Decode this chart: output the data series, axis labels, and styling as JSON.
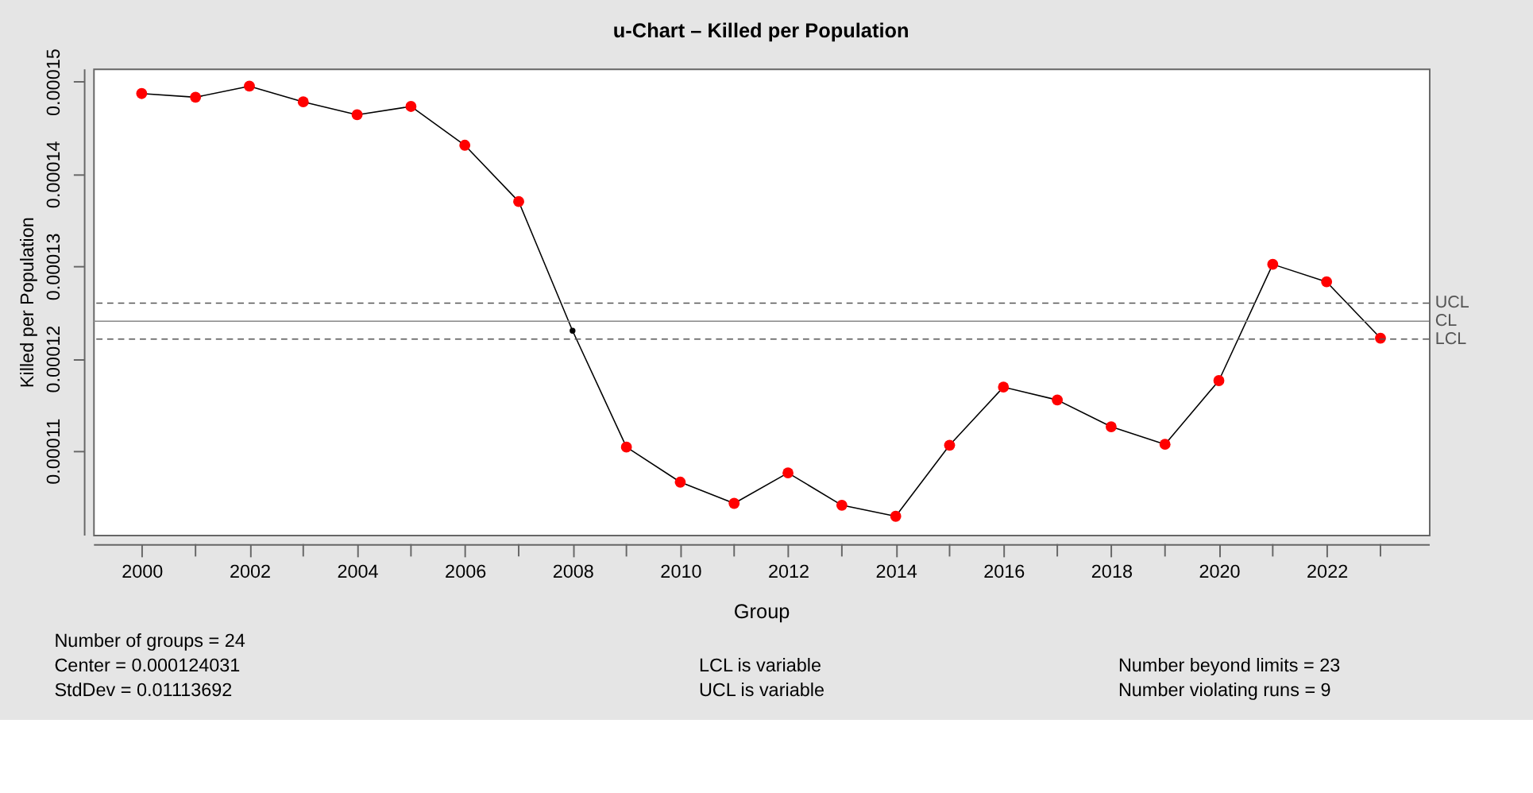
{
  "chart_data": {
    "type": "line",
    "title": "u-Chart – Killed per Population",
    "xlabel": "Group",
    "ylabel": "Killed per Population",
    "x": [
      2000,
      2001,
      2002,
      2003,
      2004,
      2005,
      2006,
      2007,
      2008,
      2009,
      2010,
      2011,
      2012,
      2013,
      2014,
      2015,
      2016,
      2017,
      2018,
      2019,
      2020,
      2021,
      2022,
      2023
    ],
    "series": [
      {
        "color": "#000000",
        "values": [
          0.0001487,
          0.0001483,
          0.0001495,
          0.0001478,
          0.0001464,
          0.0001473,
          0.0001431,
          0.000137,
          0.000123,
          0.0001104,
          0.0001066,
          0.0001043,
          0.0001076,
          0.0001041,
          0.0001029,
          0.0001106,
          0.0001169,
          0.0001155,
          0.0001126,
          0.0001107,
          0.0001176,
          0.0001302,
          0.0001283,
          0.0001222
        ],
        "colors": [
          "#ff0000",
          "#ff0000",
          "#ff0000",
          "#ff0000",
          "#ff0000",
          "#ff0000",
          "#ff0000",
          "#ff0000",
          "#000000",
          "#ff0000",
          "#ff0000",
          "#ff0000",
          "#ff0000",
          "#ff0000",
          "#ff0000",
          "#ff0000",
          "#ff0000",
          "#ff0000",
          "#ff0000",
          "#ff0000",
          "#ff0000",
          "#ff0000",
          "#ff0000",
          "#ff0000"
        ]
      }
    ],
    "xlim": [
      1999.1,
      2023.9
    ],
    "xticks": [
      2000,
      {
        "value": 2001,
        "label": null
      },
      2002,
      {
        "value": 2003,
        "label": null
      },
      2004,
      {
        "value": 2005,
        "label": null
      },
      2006,
      {
        "value": 2007,
        "label": null
      },
      2008,
      {
        "value": 2009,
        "label": null
      },
      2010,
      {
        "value": 2011,
        "label": null
      },
      2012,
      {
        "value": 2013,
        "label": null
      },
      2014,
      {
        "value": 2015,
        "label": null
      },
      2016,
      {
        "value": 2017,
        "label": null
      },
      2018,
      {
        "value": 2019,
        "label": null
      },
      2020,
      {
        "value": 2021,
        "label": null
      },
      2022,
      {
        "value": 2023,
        "label": null
      }
    ],
    "ylim": [
      0.0001009,
      0.0001514
    ],
    "yticks": [
      0.00011,
      0.00012,
      0.00013,
      0.00014,
      0.00015
    ],
    "ref_lines": [
      {
        "axis": "y",
        "value": 0.000126,
        "label": "UCL",
        "line_style": "dashed",
        "color": "#555555"
      },
      {
        "axis": "y",
        "value": 0.000124031,
        "label": "CL",
        "line_style": "solid",
        "color": "#888888"
      },
      {
        "axis": "y",
        "value": 0.0001221,
        "label": "LCL",
        "line_style": "dashed",
        "color": "#555555"
      }
    ],
    "annotations": [
      "Number of groups = 24",
      "Center = 0.000124031",
      "StdDev = 0.01113692",
      "LCL is variable",
      "UCL is variable",
      "Number beyond limits = 23",
      "Number violating runs = 9"
    ],
    "marker": "circle",
    "line_style": "solid",
    "grid": false
  }
}
